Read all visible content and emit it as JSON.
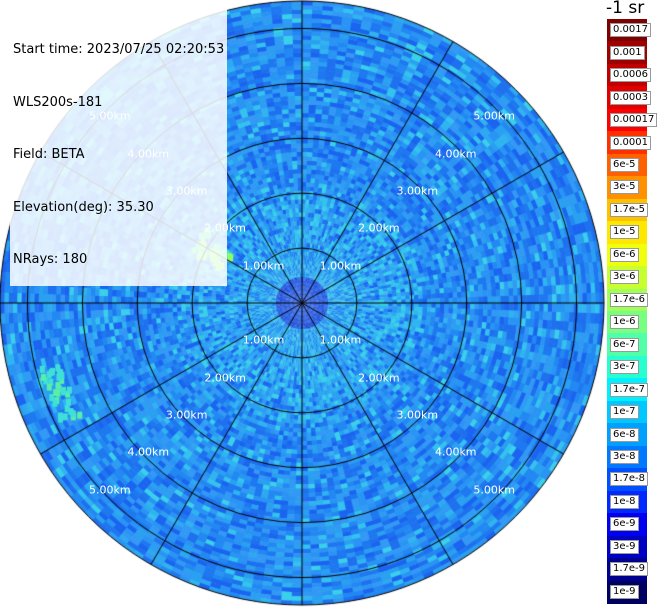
{
  "info": {
    "start_time": "Start time: 2023/07/25 02:20:53",
    "instrument": "WLS200s-181",
    "field": "Field: BETA",
    "elevation": "Elevation(deg): 35.30",
    "nrays": "NRays: 180"
  },
  "colorbar": {
    "units_label": "-1 sr",
    "labels": [
      "0.0017",
      "0.001",
      "0.0006",
      "0.0003",
      "0.00017",
      "0.0001",
      "6e-5",
      "3e-5",
      "1.7e-5",
      "1e-5",
      "6e-6",
      "3e-6",
      "1.7e-6",
      "1e-6",
      "6e-7",
      "3e-7",
      "1.7e-7",
      "1e-7",
      "6e-8",
      "3e-8",
      "1.7e-8",
      "1e-8",
      "6e-9",
      "3e-9",
      "1.7e-9",
      "1e-9"
    ],
    "colors": [
      "#7f0000",
      "#9f0000",
      "#c00000",
      "#e00000",
      "#ff0000",
      "#ff3000",
      "#ff6000",
      "#ff9000",
      "#ffc000",
      "#ffe800",
      "#f0ff0c",
      "#c8ff30",
      "#a0ff58",
      "#78ff80",
      "#50ffa8",
      "#28ffd0",
      "#00f0ff",
      "#00c8ff",
      "#00a0ff",
      "#0078ff",
      "#0050ff",
      "#0028ff",
      "#0000f0",
      "#0000c0",
      "#000090",
      "#000060"
    ]
  },
  "chart_data": {
    "type": "heatmap",
    "title": "",
    "projection": "polar (PPI)",
    "field": "BETA",
    "units": "sr-1",
    "colorscale": "log",
    "range_km": [
      0,
      5.5
    ],
    "ring_labels": [
      "1.00km",
      "2.00km",
      "3.00km",
      "4.00km",
      "5.00km"
    ],
    "ring_values_km": [
      1,
      2,
      3,
      4,
      5
    ],
    "spokes_deg": [
      0,
      30,
      60,
      90,
      120,
      150,
      180,
      210,
      240,
      270,
      300,
      330
    ],
    "nrays": 180,
    "background_beta": "~1e-7",
    "notable_features": [
      {
        "azimuth_deg": 300,
        "range_km": [
          1.5,
          2.2
        ],
        "beta": "~1.7e-6"
      },
      {
        "azimuth_deg": 250,
        "range_km": [
          4.5,
          4.9
        ],
        "beta": "~3e-7"
      }
    ]
  }
}
